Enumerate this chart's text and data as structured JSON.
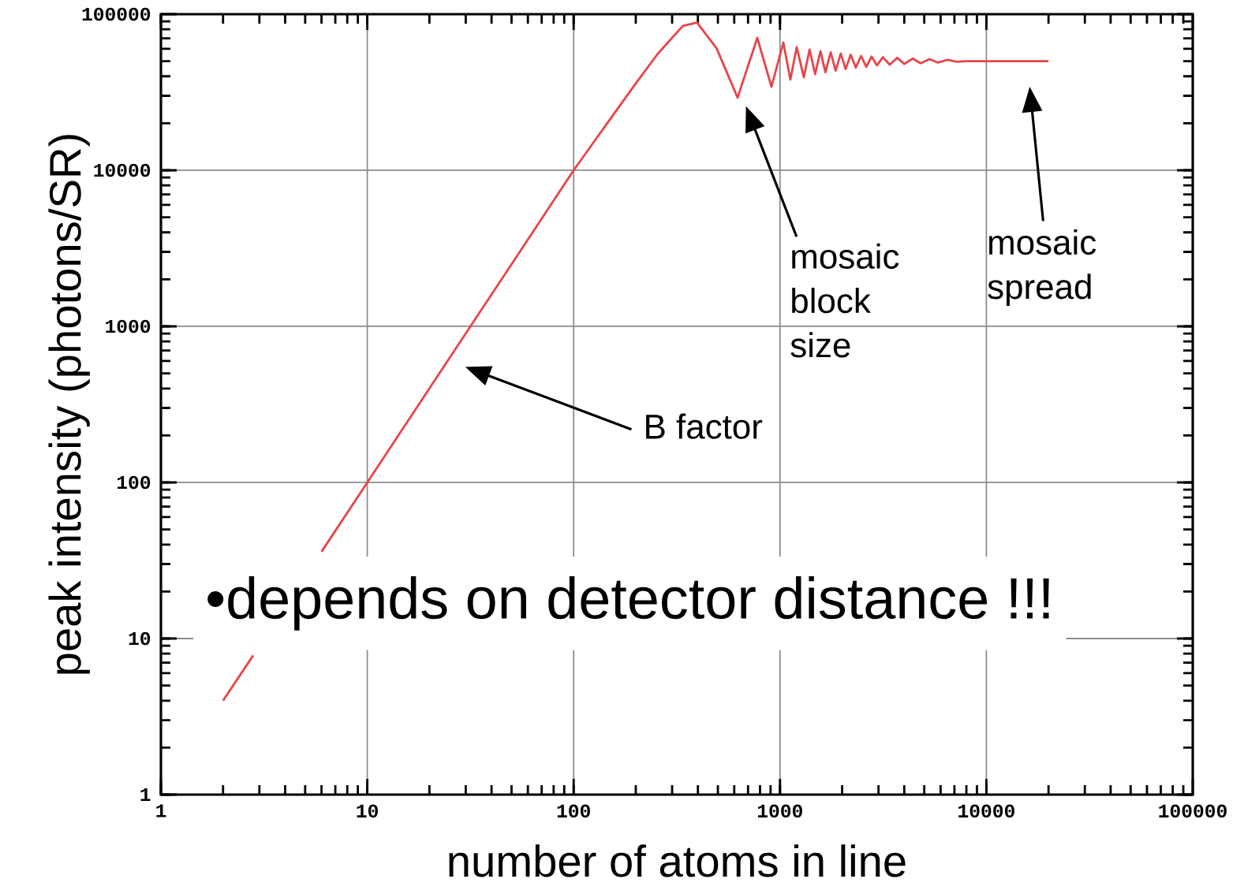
{
  "chart_data": {
    "type": "line",
    "xlabel": "number of atoms in line",
    "ylabel": "peak intensity (photons/SR)",
    "log": "xy",
    "grid": true,
    "xlim": [
      1,
      100000
    ],
    "ylim": [
      1,
      100000
    ],
    "xticks": [
      1,
      10,
      100,
      1000,
      10000,
      100000
    ],
    "yticks": [
      1,
      10,
      100,
      1000,
      10000,
      100000
    ],
    "series": [
      {
        "color": "#e8454a",
        "x": [
          2,
          2.8,
          4,
          6,
          10,
          20,
          30,
          50,
          100,
          159,
          200,
          255,
          338,
          396,
          493,
          623,
          776,
          909,
          1038,
          1122,
          1205,
          1304,
          1390,
          1480,
          1570,
          1660,
          1760,
          1860,
          1970,
          2080,
          2200,
          2330,
          2470,
          2620,
          2780,
          2950,
          3150,
          3400,
          3700,
          4000,
          4400,
          4800,
          5300,
          5800,
          6500,
          7200,
          8000,
          12000,
          15000,
          20000
        ],
        "values": [
          4,
          7.8,
          null,
          36,
          100,
          400,
          900,
          2500,
          10000,
          23600,
          36000,
          55600,
          84100,
          88400,
          60400,
          29200,
          70500,
          34300,
          65800,
          38100,
          61400,
          39400,
          59300,
          41300,
          58000,
          42500,
          57000,
          43500,
          56000,
          44500,
          55000,
          45500,
          54000,
          46000,
          53500,
          47000,
          53000,
          47500,
          52500,
          48000,
          52000,
          48500,
          51500,
          49000,
          51000,
          49500,
          50000,
          50000,
          50000,
          50000
        ]
      }
    ],
    "annotations": [
      "B factor",
      "mosaic block size",
      "mosaic spread",
      "•depends on detector distance !!!"
    ]
  }
}
